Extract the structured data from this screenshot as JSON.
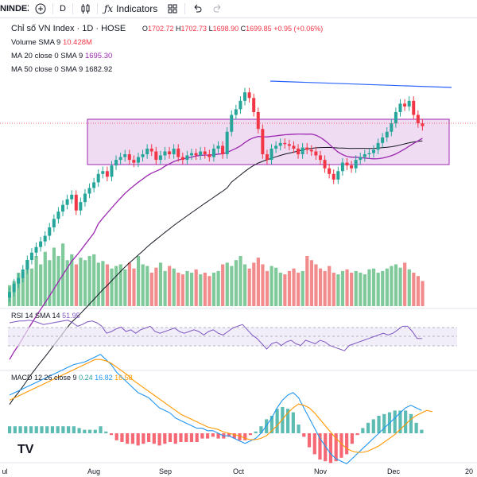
{
  "toolbar": {
    "symbol": "NINDEX",
    "interval": "D",
    "indicators_label": "Indicators"
  },
  "legend": {
    "title": "Chỉ số VN Index · 1D · HOSE",
    "ohlc": {
      "o_label": "O",
      "o": "1702.72",
      "h_label": "H",
      "h": "1702.73",
      "l_label": "L",
      "l": "1698.90",
      "c_label": "C",
      "c": "1699.85",
      "change": "+0.95 (+0.06%)"
    },
    "volume_label": "Volume SMA 9",
    "volume_value": "10.428M",
    "ma20_label": "MA 20 close 0 SMA 9",
    "ma20_value": "1695.30",
    "ma50_label": "MA 50 close 0 SMA 9",
    "ma50_value": "1682.92",
    "rsi_label": "RSI 14 SMA 14",
    "rsi_value": "51.95",
    "macd_label": "MACD 12 26 close 9",
    "macd_hist": "0.24",
    "macd_line": "16.82",
    "macd_signal": "16.58"
  },
  "colors": {
    "up": "#26a69a",
    "down": "#f23645",
    "vol_up": "#7fc99a",
    "vol_down": "#f28b8b",
    "ma20": "#9c27b0",
    "ma50": "#131722",
    "rsi": "#7e57c2",
    "macd": "#2196f3",
    "signal": "#ff9800",
    "box": "#e1bee7",
    "trendline": "#2962ff"
  },
  "chart_data": {
    "type": "candlestick",
    "x_ticks": [
      "ul",
      "Aug",
      "Sep",
      "Oct",
      "Nov",
      "Dec",
      "20"
    ],
    "price_trend": [
      1405,
      1420,
      1430,
      1445,
      1462,
      1475,
      1485,
      1495,
      1505,
      1520,
      1535,
      1548,
      1560,
      1570,
      1578,
      1550,
      1565,
      1580,
      1590,
      1600,
      1615,
      1620,
      1610,
      1630,
      1640,
      1645,
      1650,
      1640,
      1635,
      1645,
      1650,
      1660,
      1655,
      1640,
      1648,
      1655,
      1650,
      1660,
      1645,
      1640,
      1648,
      1652,
      1648,
      1655,
      1650,
      1645,
      1660,
      1665,
      1650,
      1690,
      1720,
      1730,
      1745,
      1760,
      1750,
      1725,
      1695,
      1650,
      1640,
      1660,
      1665,
      1670,
      1668,
      1665,
      1660,
      1650,
      1662,
      1658,
      1655,
      1648,
      1640,
      1625,
      1615,
      1605,
      1620,
      1635,
      1630,
      1625,
      1640,
      1645,
      1650,
      1652,
      1658,
      1670,
      1680,
      1690,
      1705,
      1725,
      1740,
      1735,
      1745,
      1720,
      1705,
      1700
    ],
    "volume_trend": [
      25,
      30,
      40,
      35,
      55,
      45,
      60,
      50,
      65,
      55,
      70,
      60,
      75,
      55,
      62,
      50,
      58,
      55,
      60,
      62,
      52,
      54,
      50,
      45,
      48,
      50,
      44,
      52,
      45,
      60,
      50,
      48,
      40,
      46,
      52,
      42,
      48,
      45,
      40,
      38,
      42,
      40,
      44,
      38,
      40,
      36,
      40,
      42,
      50,
      52,
      48,
      55,
      60,
      50,
      45,
      52,
      58,
      50,
      42,
      48,
      46,
      40,
      38,
      42,
      45,
      40,
      42,
      60,
      55,
      50,
      45,
      42,
      48,
      40,
      38,
      42,
      44,
      40,
      42,
      40,
      38,
      44,
      45,
      40,
      42,
      45,
      48,
      50,
      46,
      52,
      44,
      40,
      36,
      30
    ],
    "rsi_trend": [
      70,
      71,
      72,
      72,
      73,
      72,
      70,
      68,
      69,
      70,
      71,
      72,
      73,
      70,
      66,
      68,
      71,
      72,
      70,
      66,
      58,
      60,
      63,
      65,
      60,
      62,
      58,
      62,
      64,
      66,
      60,
      58,
      60,
      62,
      64,
      60,
      58,
      60,
      62,
      60,
      56,
      60,
      62,
      58,
      56,
      60,
      64,
      66,
      68,
      62,
      56,
      52,
      46,
      40,
      46,
      48,
      44,
      48,
      50,
      46,
      44,
      50,
      48,
      46,
      50,
      48,
      44,
      42,
      40,
      38,
      44,
      46,
      48,
      50,
      52,
      54,
      56,
      58,
      56,
      58,
      62,
      66,
      66,
      60,
      52,
      52
    ],
    "macd_trend": [
      30,
      32,
      34,
      36,
      38,
      40,
      42,
      44,
      46,
      48,
      50,
      52,
      54,
      55,
      56,
      58,
      60,
      62,
      58,
      54,
      48,
      44,
      40,
      36,
      32,
      30,
      28,
      24,
      20,
      18,
      16,
      12,
      10,
      8,
      6,
      4,
      4,
      2,
      2,
      0,
      -2,
      -2,
      -4,
      -6,
      -8,
      -6,
      -4,
      0,
      6,
      12,
      20,
      26,
      30,
      32,
      28,
      20,
      12,
      4,
      -4,
      -10,
      -16,
      -20,
      -22,
      -24,
      -20,
      -16,
      -12,
      -8,
      -4,
      0,
      4,
      8,
      12,
      16,
      20,
      22,
      20,
      18
    ],
    "signal_trend": [
      26,
      28,
      30,
      32,
      34,
      36,
      38,
      40,
      42,
      44,
      46,
      48,
      50,
      52,
      54,
      56,
      58,
      58,
      57,
      55,
      52,
      49,
      46,
      42,
      39,
      36,
      33,
      30,
      27,
      24,
      21,
      18,
      15,
      13,
      11,
      9,
      7,
      5,
      4,
      3,
      1,
      0,
      -1,
      -2,
      -4,
      -5,
      -5,
      -4,
      -2,
      2,
      6,
      11,
      16,
      20,
      23,
      22,
      20,
      16,
      11,
      6,
      1,
      -4,
      -8,
      -12,
      -14,
      -15,
      -15,
      -14,
      -12,
      -10,
      -7,
      -4,
      -1,
      3,
      7,
      11,
      14,
      16,
      18,
      17
    ]
  }
}
